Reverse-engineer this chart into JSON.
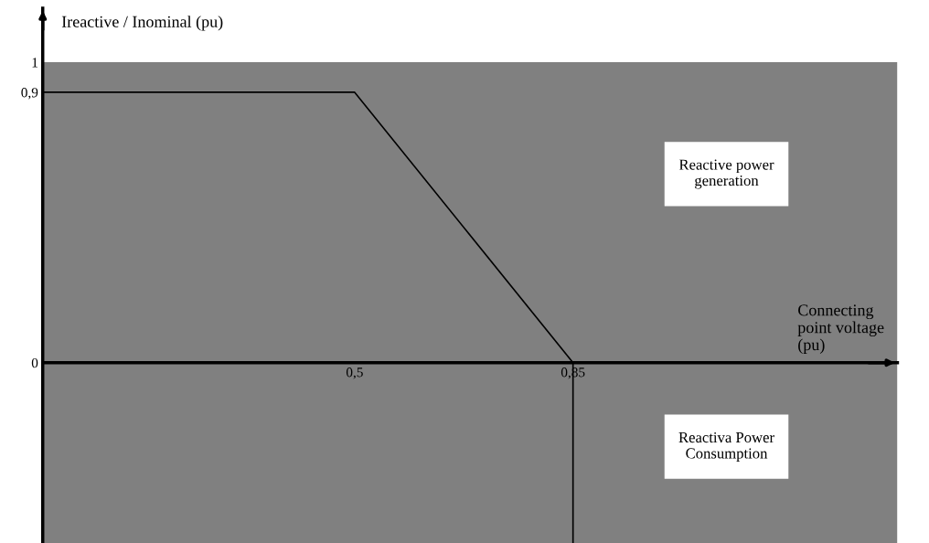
{
  "chart_data": {
    "type": "line",
    "xlabel": "Connecting\npoint voltage\n(pu)",
    "ylabel": "Ireactive / Inominal (pu)",
    "series": [
      {
        "color": "#000000",
        "x": [
          0,
          0.5,
          0.85,
          0.85
        ],
        "values": [
          0.9,
          0.9,
          0,
          -0.6
        ]
      }
    ],
    "xlim": [
      0,
      1.37
    ],
    "ylim": [
      -0.6,
      1.18
    ],
    "xticks": [
      {
        "value": 0.5,
        "label": "0,5"
      },
      {
        "value": 0.85,
        "label": "0,85"
      }
    ],
    "yticks": [
      0,
      {
        "value": 0.9,
        "label": "0,9"
      },
      1
    ],
    "bands": [
      {
        "axis": "y",
        "from": -0.6,
        "to": 1,
        "color": "#808080"
      }
    ],
    "annotations": [
      "Reactive power\ngeneration",
      "Reactiva Power\nConsumption"
    ],
    "grid": false,
    "marker": "none",
    "line_style": "solid"
  }
}
